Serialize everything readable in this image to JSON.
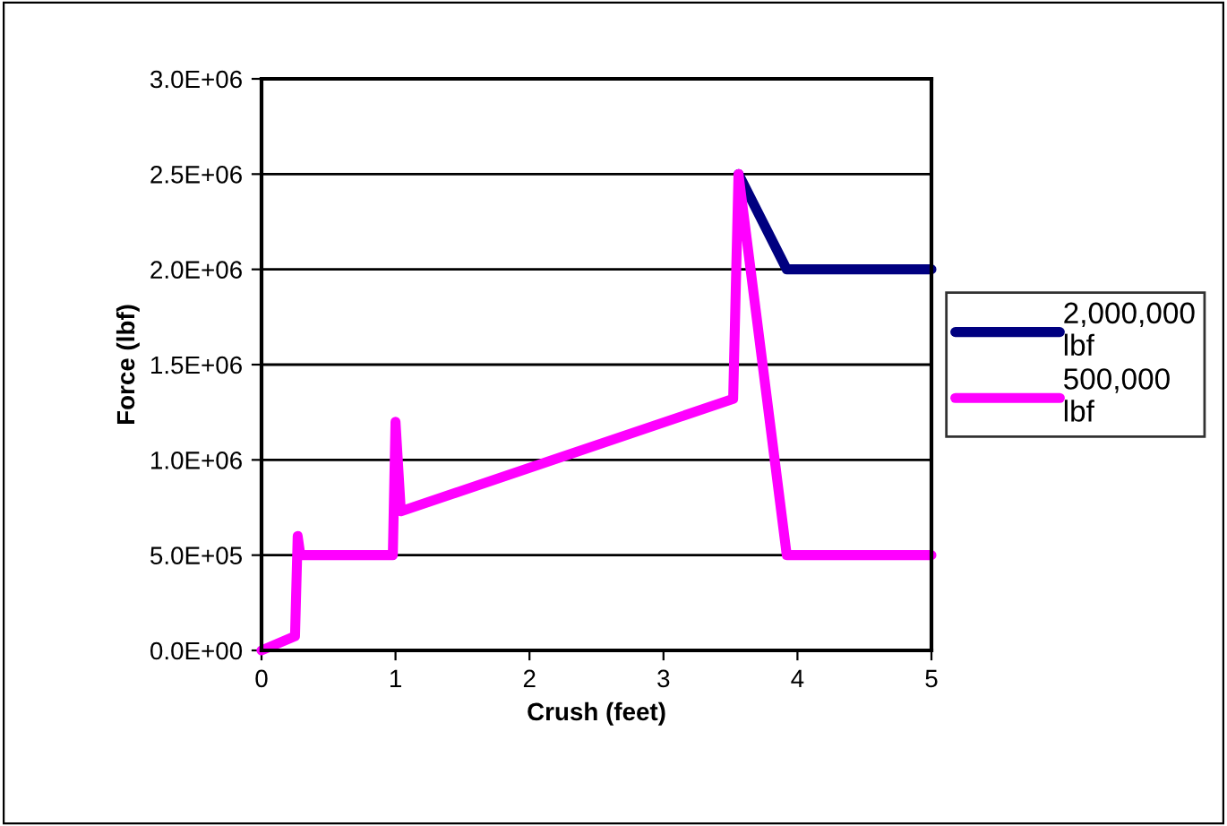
{
  "chart_data": {
    "type": "line",
    "xlabel": "Crush (feet)",
    "ylabel": "Force (lbf)",
    "xlim": [
      0,
      5
    ],
    "xticks": [
      0,
      1,
      2,
      3,
      4,
      5
    ],
    "ylim": [
      0,
      3000000
    ],
    "yticks": [
      {
        "value": 0,
        "label": "0.0E+00"
      },
      {
        "value": 500000,
        "label": "5.0E+05"
      },
      {
        "value": 1000000,
        "label": "1.0E+06"
      },
      {
        "value": 1500000,
        "label": "1.5E+06"
      },
      {
        "value": 2000000,
        "label": "2.0E+06"
      },
      {
        "value": 2500000,
        "label": "2.5E+06"
      },
      {
        "value": 3000000,
        "label": "3.0E+06"
      }
    ],
    "grid": "y",
    "legend": "right",
    "marker": "none",
    "line_style": "solid",
    "series": [
      {
        "name": "2,000,000\nlbf",
        "color": "#000080",
        "x": [
          3.56,
          3.92,
          5
        ],
        "values": [
          2500000,
          2000000,
          2000000
        ]
      },
      {
        "name": "500,000\nlbf",
        "color": "#ff00ff",
        "x": [
          0,
          0.25,
          0.27,
          0.29,
          0.98,
          1.0,
          1.04,
          3.52,
          3.56,
          3.92,
          5
        ],
        "values": [
          0,
          75000,
          600000,
          500000,
          500000,
          1200000,
          730000,
          1320000,
          2500000,
          500000,
          500000
        ]
      }
    ]
  }
}
